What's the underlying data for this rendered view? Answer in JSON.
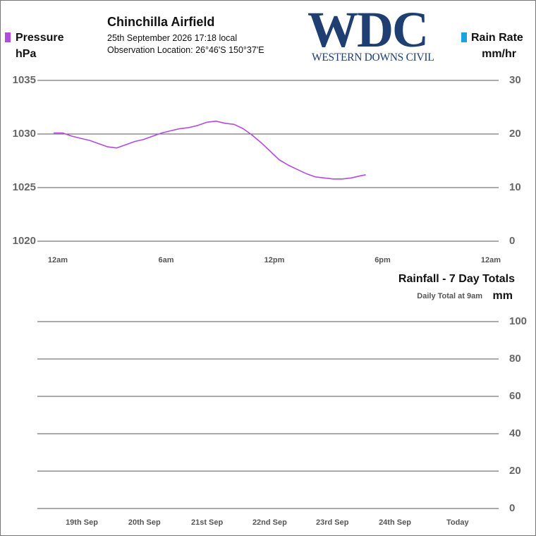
{
  "header": {
    "station_name": "Chinchilla Airfield",
    "date_line": "25th September 2026  17:18 local",
    "location_line": "Observation Location:   26°46'S 150°37'E"
  },
  "logo": {
    "letters": "WDC",
    "tagline": "WESTERN DOWNS CIVIL",
    "color": "#1f3f73"
  },
  "pressure_legend": {
    "label": "Pressure",
    "unit": "hPa",
    "color": "#b44be1"
  },
  "rainrate_legend": {
    "label": "Rain Rate",
    "unit": "mm/hr",
    "color": "#1aa3e0"
  },
  "rainfall_panel": {
    "title": "Rainfall - 7 Day Totals",
    "note": "Daily Total at 9am",
    "unit": "mm"
  },
  "chart_data": [
    {
      "type": "line",
      "series": [
        {
          "name": "Pressure",
          "color": "#b44be1",
          "x": [
            0,
            0.5,
            1,
            1.5,
            2,
            2.5,
            3,
            3.5,
            4,
            4.5,
            5,
            5.5,
            6,
            6.5,
            7,
            7.5,
            8,
            8.5,
            9,
            9.5,
            10,
            10.5,
            11,
            11.5,
            12,
            12.5,
            13,
            13.5,
            14,
            14.5,
            15,
            15.5,
            16,
            16.5,
            17,
            17.3
          ],
          "y": [
            1030.1,
            1030.1,
            1029.8,
            1029.6,
            1029.4,
            1029.1,
            1028.8,
            1028.7,
            1029.0,
            1029.3,
            1029.5,
            1029.8,
            1030.1,
            1030.3,
            1030.5,
            1030.6,
            1030.8,
            1031.1,
            1031.2,
            1031.0,
            1030.9,
            1030.5,
            1029.9,
            1029.2,
            1028.4,
            1027.6,
            1027.1,
            1026.7,
            1026.3,
            1026.0,
            1025.9,
            1025.8,
            1025.8,
            1025.9,
            1026.1,
            1026.2
          ]
        }
      ],
      "x_tick_labels": [
        "12am",
        "6am",
        "12pm",
        "6pm",
        "12am"
      ],
      "x_range_hours": [
        0,
        24
      ],
      "y_left": {
        "ticks": [
          1020,
          1025,
          1030,
          1035
        ],
        "range": [
          1020,
          1035
        ]
      },
      "y_right": {
        "ticks": [
          0,
          10,
          20,
          30
        ],
        "range": [
          0,
          30
        ]
      },
      "grid": true
    },
    {
      "type": "bar",
      "categories": [
        "19th Sep",
        "20th Sep",
        "21st Sep",
        "22nd Sep",
        "23rd Sep",
        "24th Sep",
        "Today"
      ],
      "values": [
        0,
        0,
        0,
        0,
        0,
        0,
        0
      ],
      "y_ticks": [
        0,
        20,
        40,
        60,
        80,
        100
      ],
      "ylim": [
        0,
        100
      ],
      "grid": true
    }
  ]
}
